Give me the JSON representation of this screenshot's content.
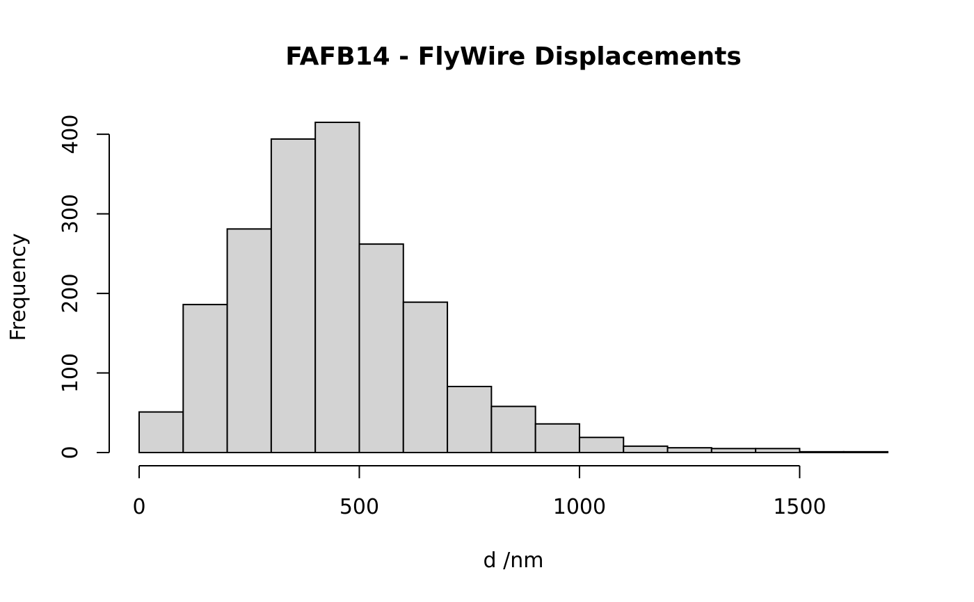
{
  "chart_data": {
    "type": "bar",
    "title": "FAFB14 - FlyWire Displacements",
    "xlabel": "d /nm",
    "ylabel": "Frequency",
    "bin_edges": [
      0,
      100,
      200,
      300,
      400,
      500,
      600,
      700,
      800,
      900,
      1000,
      1100,
      1200,
      1300,
      1400,
      1500,
      1600,
      1700
    ],
    "values": [
      51,
      186,
      281,
      394,
      415,
      262,
      189,
      83,
      58,
      36,
      19,
      8,
      6,
      5,
      5,
      1,
      1
    ],
    "xlim": [
      0,
      1700
    ],
    "ylim": [
      0,
      415
    ],
    "x_ticks": [
      0,
      500,
      1000,
      1500
    ],
    "x_tick_labels": [
      "0",
      "500",
      "1000",
      "1500"
    ],
    "y_ticks": [
      0,
      100,
      200,
      300,
      400
    ],
    "y_tick_labels": [
      "0",
      "100",
      "200",
      "300",
      "400"
    ],
    "bar_fill": "#d3d3d3",
    "bar_stroke": "#000000",
    "grid": false,
    "legend": "none"
  }
}
